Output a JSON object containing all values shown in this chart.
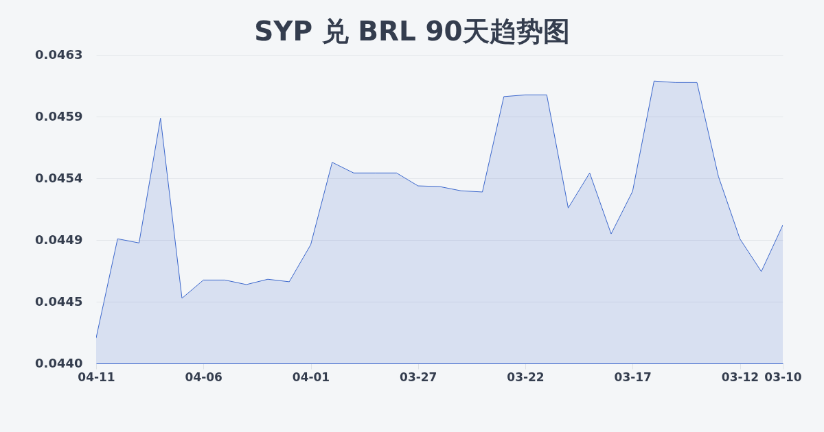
{
  "chart_data": {
    "type": "area",
    "title": "SYP 兑 BRL 90天趋势图",
    "categories": [
      "04-11",
      null,
      null,
      null,
      null,
      "04-06",
      null,
      null,
      null,
      null,
      "04-01",
      null,
      null,
      null,
      null,
      "03-27",
      null,
      null,
      null,
      null,
      "03-22",
      null,
      null,
      null,
      null,
      "03-17",
      null,
      null,
      null,
      null,
      "03-12",
      null,
      "03-10"
    ],
    "values": [
      0.044192,
      0.044937,
      0.044906,
      0.045844,
      0.04449,
      0.044627,
      0.044627,
      0.044593,
      0.044633,
      0.044614,
      0.044893,
      0.045512,
      0.045432,
      0.045432,
      0.045432,
      0.045335,
      0.04533,
      0.045298,
      0.045289,
      0.046006,
      0.046019,
      0.046019,
      0.045169,
      0.045432,
      0.044974,
      0.045294,
      0.046123,
      0.046112,
      0.046112,
      0.045406,
      0.044937,
      0.044691,
      0.04504
    ],
    "color": "#3a66cc",
    "ylim": [
      0.044,
      0.04632
    ],
    "yticks": [
      {
        "value": 0.044,
        "label": "0.0440"
      },
      {
        "value": 0.044464,
        "label": "0.0445"
      },
      {
        "value": 0.044928,
        "label": "0.0449"
      },
      {
        "value": 0.045392,
        "label": "0.0454"
      },
      {
        "value": 0.045856,
        "label": "0.0459"
      },
      {
        "value": 0.04632,
        "label": "0.0463"
      }
    ],
    "grid": "y"
  }
}
